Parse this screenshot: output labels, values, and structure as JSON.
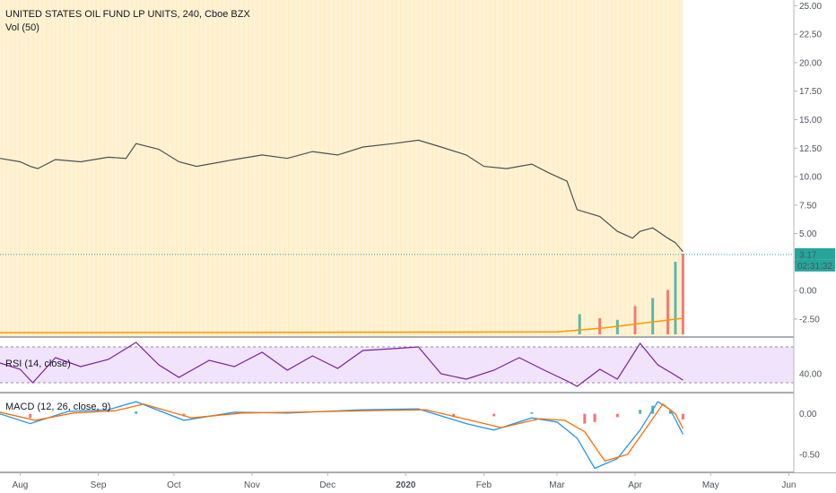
{
  "header": {
    "title": "UNITED STATES OIL FUND LP UNITS, 240, Cboe BZX",
    "volume_label": "Vol (50)"
  },
  "price_tag": {
    "value": "3.17",
    "countdown": "02:31:32"
  },
  "rsi": {
    "label": "RSI (14, close)"
  },
  "macd": {
    "label": "MACD (12, 26, close, 9)"
  },
  "colors": {
    "up": "#26a69a",
    "down": "#ef5350",
    "session_highlight": "#fff3d6",
    "rsi_line": "#7b1fa2",
    "rsi_band": "#f1e3fb",
    "macd_line": "#2196f3",
    "signal_line": "#ff6d00",
    "price_tag": "#26a69a",
    "volume_ma": "#ff9800"
  },
  "chart_data": [
    {
      "type": "line",
      "pane": "price",
      "series": [
        {
          "values": [
            {
              "x": "2019-07-24",
              "y": 11.6
            },
            {
              "x": "2019-08-01",
              "y": 11.3
            },
            {
              "x": "2019-08-05",
              "y": 10.9
            },
            {
              "x": "2019-08-08",
              "y": 10.7
            },
            {
              "x": "2019-08-15",
              "y": 11.5
            },
            {
              "x": "2019-08-25",
              "y": 11.3
            },
            {
              "x": "2019-09-05",
              "y": 11.7
            },
            {
              "x": "2019-09-12",
              "y": 11.6
            },
            {
              "x": "2019-09-16",
              "y": 12.9
            },
            {
              "x": "2019-09-25",
              "y": 12.4
            },
            {
              "x": "2019-10-03",
              "y": 11.3
            },
            {
              "x": "2019-10-10",
              "y": 10.9
            },
            {
              "x": "2019-10-25",
              "y": 11.5
            },
            {
              "x": "2019-11-05",
              "y": 11.9
            },
            {
              "x": "2019-11-15",
              "y": 11.6
            },
            {
              "x": "2019-11-25",
              "y": 12.2
            },
            {
              "x": "2019-12-05",
              "y": 11.9
            },
            {
              "x": "2019-12-15",
              "y": 12.6
            },
            {
              "x": "2019-12-27",
              "y": 12.9
            },
            {
              "x": "2020-01-06",
              "y": 13.2
            },
            {
              "x": "2020-01-15",
              "y": 12.6
            },
            {
              "x": "2020-01-25",
              "y": 11.9
            },
            {
              "x": "2020-02-01",
              "y": 10.9
            },
            {
              "x": "2020-02-10",
              "y": 10.7
            },
            {
              "x": "2020-02-20",
              "y": 11.1
            },
            {
              "x": "2020-02-27",
              "y": 10.3
            },
            {
              "x": "2020-03-05",
              "y": 9.6
            },
            {
              "x": "2020-03-09",
              "y": 7.1
            },
            {
              "x": "2020-03-18",
              "y": 6.5
            },
            {
              "x": "2020-03-25",
              "y": 5.2
            },
            {
              "x": "2020-03-31",
              "y": 4.6
            },
            {
              "x": "2020-04-03",
              "y": 5.2
            },
            {
              "x": "2020-04-08",
              "y": 5.5
            },
            {
              "x": "2020-04-14",
              "y": 4.6
            },
            {
              "x": "2020-04-17",
              "y": 4.2
            },
            {
              "x": "2020-04-20",
              "y": 3.4
            }
          ]
        }
      ],
      "y_ticks": [
        25.0,
        22.5,
        20.0,
        17.5,
        15.0,
        12.5,
        10.0,
        7.5,
        5.0,
        2.5,
        0.0,
        -2.5
      ],
      "ylim": [
        -4.0,
        25.5
      ],
      "current_price": 3.17
    },
    {
      "type": "bar",
      "pane": "volume",
      "values": [
        {
          "x": "2020-03-10",
          "y": 0.25
        },
        {
          "x": "2020-03-18",
          "y": 0.2
        },
        {
          "x": "2020-03-25",
          "y": 0.18
        },
        {
          "x": "2020-04-01",
          "y": 0.35
        },
        {
          "x": "2020-04-08",
          "y": 0.45
        },
        {
          "x": "2020-04-14",
          "y": 0.55
        },
        {
          "x": "2020-04-17",
          "y": 0.9
        },
        {
          "x": "2020-04-20",
          "y": 1.0
        }
      ]
    },
    {
      "type": "line",
      "pane": "rsi",
      "y_ticks": [
        40.0
      ],
      "ylim": [
        20,
        80
      ],
      "band": [
        30,
        70
      ],
      "series": [
        {
          "values": [
            {
              "x": "2019-07-24",
              "y": 52
            },
            {
              "x": "2019-08-01",
              "y": 45
            },
            {
              "x": "2019-08-06",
              "y": 30
            },
            {
              "x": "2019-08-15",
              "y": 58
            },
            {
              "x": "2019-08-25",
              "y": 48
            },
            {
              "x": "2019-09-05",
              "y": 56
            },
            {
              "x": "2019-09-16",
              "y": 75
            },
            {
              "x": "2019-09-25",
              "y": 50
            },
            {
              "x": "2019-10-03",
              "y": 36
            },
            {
              "x": "2019-10-15",
              "y": 55
            },
            {
              "x": "2019-10-25",
              "y": 48
            },
            {
              "x": "2019-11-05",
              "y": 64
            },
            {
              "x": "2019-11-15",
              "y": 44
            },
            {
              "x": "2019-11-25",
              "y": 60
            },
            {
              "x": "2019-12-05",
              "y": 46
            },
            {
              "x": "2019-12-15",
              "y": 66
            },
            {
              "x": "2019-12-27",
              "y": 68
            },
            {
              "x": "2020-01-06",
              "y": 70
            },
            {
              "x": "2020-01-15",
              "y": 40
            },
            {
              "x": "2020-01-25",
              "y": 34
            },
            {
              "x": "2020-02-05",
              "y": 44
            },
            {
              "x": "2020-02-15",
              "y": 58
            },
            {
              "x": "2020-02-25",
              "y": 44
            },
            {
              "x": "2020-03-05",
              "y": 32
            },
            {
              "x": "2020-03-09",
              "y": 26
            },
            {
              "x": "2020-03-18",
              "y": 45
            },
            {
              "x": "2020-03-25",
              "y": 34
            },
            {
              "x": "2020-04-03",
              "y": 74
            },
            {
              "x": "2020-04-10",
              "y": 50
            },
            {
              "x": "2020-04-16",
              "y": 40
            },
            {
              "x": "2020-04-20",
              "y": 33
            }
          ]
        }
      ]
    },
    {
      "type": "line",
      "pane": "macd",
      "y_ticks": [
        0.0,
        -0.5
      ],
      "ylim": [
        -0.72,
        0.25
      ],
      "series": [
        {
          "values": [
            {
              "x": "2019-07-24",
              "y": 0.0
            },
            {
              "x": "2019-08-05",
              "y": -0.12
            },
            {
              "x": "2019-08-20",
              "y": 0.03
            },
            {
              "x": "2019-09-05",
              "y": 0.05
            },
            {
              "x": "2019-09-16",
              "y": 0.15
            },
            {
              "x": "2019-10-05",
              "y": -0.08
            },
            {
              "x": "2019-10-25",
              "y": 0.02
            },
            {
              "x": "2019-11-15",
              "y": 0.01
            },
            {
              "x": "2019-12-15",
              "y": 0.05
            },
            {
              "x": "2020-01-06",
              "y": 0.06
            },
            {
              "x": "2020-01-25",
              "y": -0.12
            },
            {
              "x": "2020-02-05",
              "y": -0.2
            },
            {
              "x": "2020-02-20",
              "y": -0.05
            },
            {
              "x": "2020-03-01",
              "y": -0.1
            },
            {
              "x": "2020-03-09",
              "y": -0.3
            },
            {
              "x": "2020-03-16",
              "y": -0.67
            },
            {
              "x": "2020-03-25",
              "y": -0.55
            },
            {
              "x": "2020-04-03",
              "y": -0.2
            },
            {
              "x": "2020-04-10",
              "y": 0.15
            },
            {
              "x": "2020-04-15",
              "y": 0.05
            },
            {
              "x": "2020-04-20",
              "y": -0.25
            }
          ]
        },
        {
          "values": [
            {
              "x": "2019-07-24",
              "y": 0.02
            },
            {
              "x": "2019-08-07",
              "y": -0.08
            },
            {
              "x": "2019-08-22",
              "y": 0.01
            },
            {
              "x": "2019-09-08",
              "y": 0.04
            },
            {
              "x": "2019-09-19",
              "y": 0.12
            },
            {
              "x": "2019-10-08",
              "y": -0.05
            },
            {
              "x": "2019-10-28",
              "y": 0.01
            },
            {
              "x": "2019-11-18",
              "y": 0.02
            },
            {
              "x": "2019-12-18",
              "y": 0.04
            },
            {
              "x": "2020-01-09",
              "y": 0.05
            },
            {
              "x": "2020-01-28",
              "y": -0.09
            },
            {
              "x": "2020-02-08",
              "y": -0.17
            },
            {
              "x": "2020-02-23",
              "y": -0.06
            },
            {
              "x": "2020-03-04",
              "y": -0.08
            },
            {
              "x": "2020-03-12",
              "y": -0.22
            },
            {
              "x": "2020-03-20",
              "y": -0.58
            },
            {
              "x": "2020-03-29",
              "y": -0.5
            },
            {
              "x": "2020-04-06",
              "y": -0.15
            },
            {
              "x": "2020-04-12",
              "y": 0.12
            },
            {
              "x": "2020-04-17",
              "y": 0.0
            },
            {
              "x": "2020-04-20",
              "y": -0.18
            }
          ]
        }
      ],
      "histogram": [
        {
          "x": "2019-08-05",
          "y": -0.05
        },
        {
          "x": "2019-09-16",
          "y": 0.03
        },
        {
          "x": "2019-10-05",
          "y": -0.03
        },
        {
          "x": "2020-01-20",
          "y": -0.04
        },
        {
          "x": "2020-02-05",
          "y": -0.03
        },
        {
          "x": "2020-02-20",
          "y": 0.02
        },
        {
          "x": "2020-03-12",
          "y": -0.12
        },
        {
          "x": "2020-03-16",
          "y": -0.1
        },
        {
          "x": "2020-03-25",
          "y": -0.04
        },
        {
          "x": "2020-04-03",
          "y": 0.05
        },
        {
          "x": "2020-04-08",
          "y": 0.1
        },
        {
          "x": "2020-04-15",
          "y": 0.04
        },
        {
          "x": "2020-04-20",
          "y": -0.07
        }
      ]
    },
    {
      "type": "table",
      "pane": "time_axis",
      "x_ticks": [
        {
          "x": "2019-08-01",
          "label": "Aug"
        },
        {
          "x": "2019-09-01",
          "label": "Sep"
        },
        {
          "x": "2019-10-01",
          "label": "Oct"
        },
        {
          "x": "2019-11-01",
          "label": "Nov"
        },
        {
          "x": "2019-12-01",
          "label": "Dec"
        },
        {
          "x": "2020-01-01",
          "label": "2020"
        },
        {
          "x": "2020-02-01",
          "label": "Feb"
        },
        {
          "x": "2020-03-01",
          "label": "Mar"
        },
        {
          "x": "2020-04-01",
          "label": "Apr"
        },
        {
          "x": "2020-05-01",
          "label": "May"
        },
        {
          "x": "2020-06-01",
          "label": "Jun"
        }
      ],
      "xlim": [
        "2019-07-24",
        "2020-06-03"
      ],
      "data_end": "2020-04-20"
    }
  ]
}
